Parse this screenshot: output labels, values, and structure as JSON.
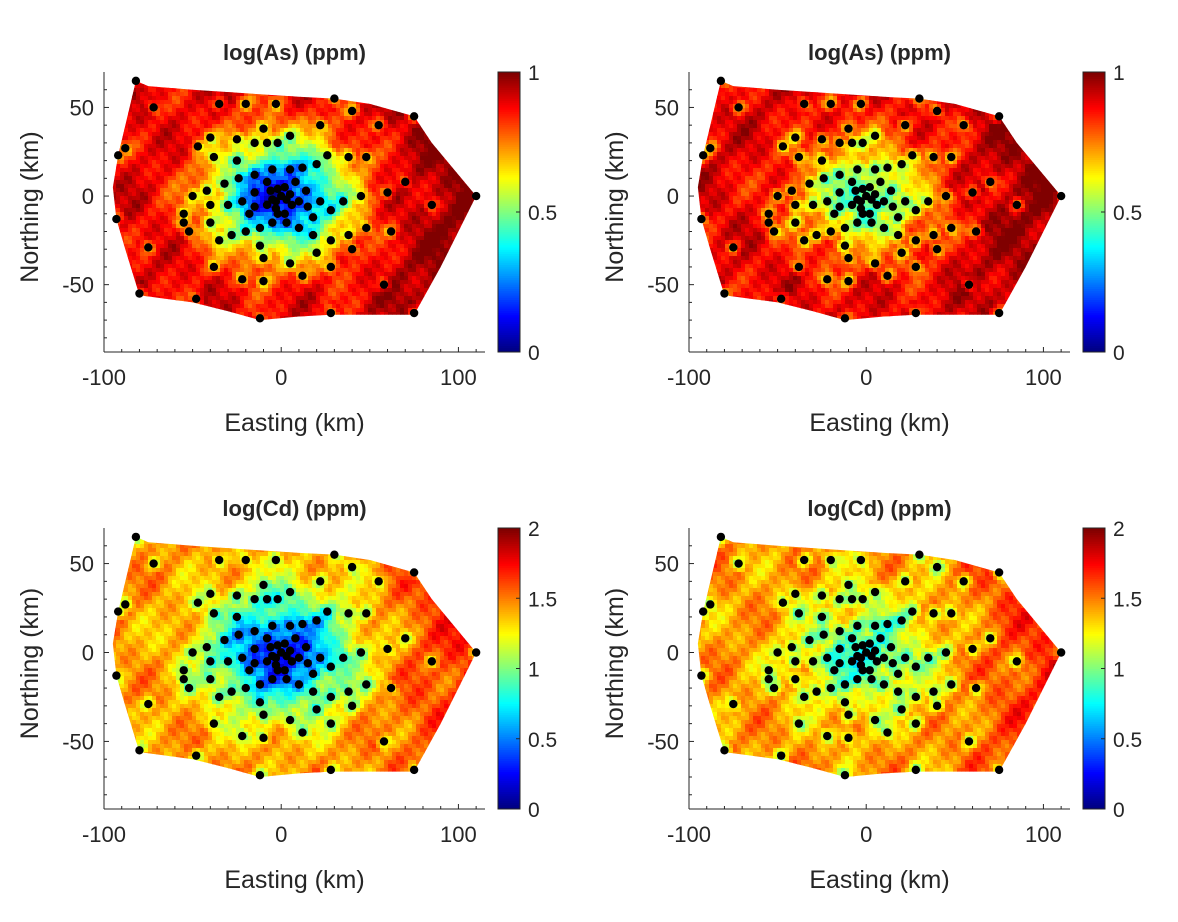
{
  "figure": {
    "panels": [
      {
        "title": "log(As) (ppm)",
        "xlabel": "Easting (km)",
        "ylabel": "Northing (km)"
      },
      {
        "title": "log(As) (ppm)",
        "xlabel": "Easting (km)",
        "ylabel": "Northing (km)"
      },
      {
        "title": "log(Cd) (ppm)",
        "xlabel": "Easting (km)",
        "ylabel": "Northing (km)"
      },
      {
        "title": "log(Cd) (ppm)",
        "xlabel": "Easting (km)",
        "ylabel": "Northing (km)"
      }
    ]
  },
  "chart_data": [
    {
      "type": "heatmap",
      "title": "log(As) (ppm)",
      "xlabel": "Easting (km)",
      "ylabel": "Northing (km)",
      "xlim": [
        -100,
        115
      ],
      "ylim": [
        -88,
        70
      ],
      "xticks": [
        -100,
        0,
        100
      ],
      "yticks": [
        -50,
        0,
        50
      ],
      "colorbar": {
        "colormap": "jet",
        "lim": [
          0,
          1
        ],
        "ticks": [
          0,
          0.5,
          1
        ],
        "ticklabels": [
          "0",
          "0.5",
          "1"
        ]
      },
      "field": {
        "low_near_center": true,
        "center_value": 0.2,
        "edge_value": 0.9,
        "east_value": 1.0
      },
      "samples_marked": true
    },
    {
      "type": "heatmap",
      "title": "log(As) (ppm)",
      "xlabel": "Easting (km)",
      "ylabel": "Northing (km)",
      "xlim": [
        -100,
        115
      ],
      "ylim": [
        -88,
        70
      ],
      "xticks": [
        -100,
        0,
        100
      ],
      "yticks": [
        -50,
        0,
        50
      ],
      "colorbar": {
        "colormap": "jet",
        "lim": [
          0,
          1
        ],
        "ticks": [
          0,
          0.5,
          1
        ],
        "ticklabels": [
          "0",
          "0.5",
          "1"
        ]
      },
      "field": {
        "low_near_center": false,
        "center_value": 0.55,
        "edge_value": 0.9,
        "east_value": 1.0
      },
      "samples_marked": true
    },
    {
      "type": "heatmap",
      "title": "log(Cd) (ppm)",
      "xlabel": "Easting (km)",
      "ylabel": "Northing (km)",
      "xlim": [
        -100,
        115
      ],
      "ylim": [
        -88,
        70
      ],
      "xticks": [
        -100,
        0,
        100
      ],
      "yticks": [
        -50,
        0,
        50
      ],
      "colorbar": {
        "colormap": "jet",
        "lim": [
          0,
          2
        ],
        "ticks": [
          0,
          0.5,
          1,
          1.5,
          2
        ],
        "ticklabels": [
          "0",
          "0.5",
          "1",
          "1.5",
          "2"
        ]
      },
      "field": {
        "low_near_center": true,
        "center_value": 0.45,
        "edge_value": 1.45,
        "east_value": 1.7
      },
      "samples_marked": true
    },
    {
      "type": "heatmap",
      "title": "log(Cd) (ppm)",
      "xlabel": "Easting (km)",
      "ylabel": "Northing (km)",
      "xlim": [
        -100,
        115
      ],
      "ylim": [
        -88,
        70
      ],
      "xticks": [
        -100,
        0,
        100
      ],
      "yticks": [
        -50,
        0,
        50
      ],
      "colorbar": {
        "colormap": "jet",
        "lim": [
          0,
          2
        ],
        "ticks": [
          0,
          0.5,
          1,
          1.5,
          2
        ],
        "ticklabels": [
          "0",
          "0.5",
          "1",
          "1.5",
          "2"
        ]
      },
      "field": {
        "low_near_center": false,
        "center_value": 1.05,
        "edge_value": 1.45,
        "east_value": 1.7
      },
      "samples_marked": true
    }
  ],
  "domain_boundary": [
    [
      -82,
      65
    ],
    [
      -75,
      62
    ],
    [
      -50,
      60
    ],
    [
      -20,
      58
    ],
    [
      10,
      56
    ],
    [
      30,
      55
    ],
    [
      50,
      52
    ],
    [
      75,
      45
    ],
    [
      85,
      30
    ],
    [
      100,
      12
    ],
    [
      110,
      0
    ],
    [
      100,
      -20
    ],
    [
      90,
      -40
    ],
    [
      75,
      -67
    ],
    [
      50,
      -67
    ],
    [
      28,
      -67
    ],
    [
      10,
      -68
    ],
    [
      -12,
      -70
    ],
    [
      -30,
      -65
    ],
    [
      -50,
      -60
    ],
    [
      -65,
      -58
    ],
    [
      -80,
      -56
    ],
    [
      -88,
      -30
    ],
    [
      -93,
      -13
    ],
    [
      -95,
      5
    ],
    [
      -92,
      23
    ]
  ],
  "sample_points": [
    [
      -82,
      65
    ],
    [
      -72,
      50
    ],
    [
      -92,
      23
    ],
    [
      -88,
      27
    ],
    [
      -93,
      -13
    ],
    [
      -75,
      -29
    ],
    [
      -80,
      -55
    ],
    [
      -48,
      -58
    ],
    [
      -12,
      -69
    ],
    [
      28,
      -66
    ],
    [
      75,
      -66
    ],
    [
      58,
      -50
    ],
    [
      85,
      -5
    ],
    [
      110,
      0
    ],
    [
      70,
      8
    ],
    [
      75,
      45
    ],
    [
      30,
      55
    ],
    [
      -3,
      52
    ],
    [
      -20,
      52
    ],
    [
      -35,
      52
    ],
    [
      -10,
      38
    ],
    [
      -25,
      32
    ],
    [
      -40,
      33
    ],
    [
      -47,
      28
    ],
    [
      -38,
      22
    ],
    [
      -25,
      20
    ],
    [
      -15,
      30
    ],
    [
      -8,
      30
    ],
    [
      -2,
      30
    ],
    [
      5,
      34
    ],
    [
      22,
      40
    ],
    [
      40,
      48
    ],
    [
      55,
      40
    ],
    [
      48,
      22
    ],
    [
      38,
      22
    ],
    [
      26,
      23
    ],
    [
      20,
      18
    ],
    [
      12,
      16
    ],
    [
      5,
      15
    ],
    [
      -5,
      15
    ],
    [
      -15,
      12
    ],
    [
      -24,
      10
    ],
    [
      -32,
      7
    ],
    [
      -42,
      3
    ],
    [
      -50,
      0
    ],
    [
      -40,
      -5
    ],
    [
      -30,
      -5
    ],
    [
      -22,
      -3
    ],
    [
      -15,
      -6
    ],
    [
      -8,
      -5
    ],
    [
      -3,
      -3
    ],
    [
      0,
      0
    ],
    [
      3,
      -2
    ],
    [
      6,
      -5
    ],
    [
      10,
      -3
    ],
    [
      15,
      -6
    ],
    [
      22,
      -3
    ],
    [
      28,
      -8
    ],
    [
      35,
      -3
    ],
    [
      45,
      0
    ],
    [
      60,
      2
    ],
    [
      62,
      -20
    ],
    [
      48,
      -18
    ],
    [
      38,
      -22
    ],
    [
      28,
      -25
    ],
    [
      18,
      -22
    ],
    [
      10,
      -18
    ],
    [
      3,
      -15
    ],
    [
      -5,
      -15
    ],
    [
      -12,
      -18
    ],
    [
      -20,
      -20
    ],
    [
      -28,
      -22
    ],
    [
      -35,
      -25
    ],
    [
      -40,
      -15
    ],
    [
      -55,
      -15
    ],
    [
      -55,
      -10
    ],
    [
      -52,
      -20
    ],
    [
      -38,
      -40
    ],
    [
      -22,
      -47
    ],
    [
      -10,
      -35
    ],
    [
      -12,
      -28
    ],
    [
      5,
      -38
    ],
    [
      12,
      -45
    ],
    [
      20,
      -32
    ],
    [
      28,
      -40
    ],
    [
      40,
      -30
    ],
    [
      -10,
      -48
    ],
    [
      -5,
      -2
    ],
    [
      -2,
      4
    ],
    [
      2,
      5
    ],
    [
      -6,
      3
    ],
    [
      5,
      1
    ],
    [
      -3,
      -7
    ],
    [
      -8,
      8
    ],
    [
      8,
      8
    ],
    [
      -15,
      2
    ],
    [
      14,
      3
    ],
    [
      -2,
      -10
    ],
    [
      2,
      -10
    ],
    [
      -18,
      -10
    ],
    [
      18,
      -12
    ]
  ]
}
